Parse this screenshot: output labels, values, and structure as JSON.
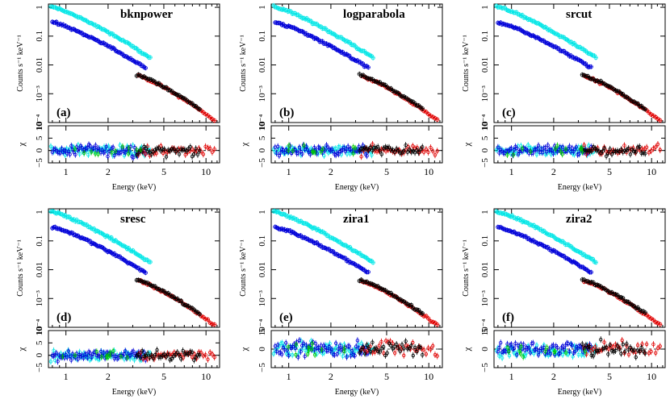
{
  "figure": {
    "xlabel": "Energy (keV)",
    "ylabel_main": "Counts s⁻¹ keV⁻¹",
    "ylabel_resid": "χ",
    "colors": {
      "cyan": "#00e6e6",
      "blue": "#0000d8",
      "red": "#e00000",
      "black": "#000000",
      "green": "#00c800"
    }
  },
  "chart_data": [
    {
      "type": "scatter",
      "title": "bknpower",
      "panel_label": "(a)",
      "xlabel": "Energy (keV)",
      "ylabel": "Counts s⁻¹ keV⁻¹",
      "xscale": "log",
      "yscale": "log",
      "xlim": [
        0.75,
        12.5
      ],
      "ylim": [
        0.0001,
        1.3
      ],
      "x_ticks": [
        1,
        2,
        5,
        10
      ],
      "y_ticks": [
        "1",
        "0.1",
        "0.01",
        "10⁻³",
        "10⁻⁴"
      ],
      "resid_ticks": [
        "10",
        "5",
        "0",
        "−5"
      ],
      "resid_ylim": [
        -5,
        10
      ],
      "series": [
        {
          "color": "cyan",
          "x_range": [
            0.78,
            4.0
          ],
          "y_start": 1.05,
          "y_end": 0.018
        },
        {
          "color": "blue",
          "x_range": [
            0.8,
            3.7
          ],
          "y_start": 0.3,
          "y_end": 0.008
        },
        {
          "color": "red",
          "x_range": [
            3.3,
            11.5
          ],
          "y_start": 0.004,
          "y_end": 0.00012
        },
        {
          "color": "black",
          "x_range": [
            3.2,
            9.0
          ],
          "y_start": 0.0045,
          "y_end": 0.0003
        }
      ]
    },
    {
      "type": "scatter",
      "title": "logparabola",
      "panel_label": "(b)",
      "xlabel": "Energy (keV)",
      "ylabel": "Counts s⁻¹ keV⁻¹",
      "xscale": "log",
      "yscale": "log",
      "xlim": [
        0.75,
        12.5
      ],
      "ylim": [
        0.0001,
        1.3
      ],
      "x_ticks": [
        1,
        2,
        5,
        10
      ],
      "y_ticks": [
        "1",
        "0.1",
        "0.01",
        "10⁻³",
        "10⁻⁴"
      ],
      "resid_ticks": [
        "10",
        "5",
        "0",
        "−5"
      ],
      "resid_ylim": [
        -5,
        10
      ],
      "series": [
        {
          "color": "cyan",
          "x_range": [
            0.78,
            4.0
          ],
          "y_start": 1.05,
          "y_end": 0.018
        },
        {
          "color": "blue",
          "x_range": [
            0.8,
            3.7
          ],
          "y_start": 0.3,
          "y_end": 0.008
        },
        {
          "color": "red",
          "x_range": [
            3.3,
            11.5
          ],
          "y_start": 0.004,
          "y_end": 0.00012
        },
        {
          "color": "black",
          "x_range": [
            3.2,
            9.0
          ],
          "y_start": 0.0045,
          "y_end": 0.0003
        }
      ]
    },
    {
      "type": "scatter",
      "title": "srcut",
      "panel_label": "(c)",
      "xlabel": "Energy (keV)",
      "ylabel": "Counts s⁻¹ keV⁻¹",
      "xscale": "log",
      "yscale": "log",
      "xlim": [
        0.75,
        12.5
      ],
      "ylim": [
        0.0001,
        1.3
      ],
      "x_ticks": [
        1,
        2,
        5,
        10
      ],
      "y_ticks": [
        "1",
        "0.1",
        "0.01",
        "10⁻³",
        "10⁻⁴"
      ],
      "resid_ticks": [
        "10",
        "5",
        "0",
        "−5"
      ],
      "resid_ylim": [
        -5,
        10
      ],
      "series": [
        {
          "color": "cyan",
          "x_range": [
            0.78,
            4.0
          ],
          "y_start": 1.05,
          "y_end": 0.018
        },
        {
          "color": "blue",
          "x_range": [
            0.8,
            3.7
          ],
          "y_start": 0.3,
          "y_end": 0.008
        },
        {
          "color": "red",
          "x_range": [
            3.3,
            11.5
          ],
          "y_start": 0.004,
          "y_end": 0.00012
        },
        {
          "color": "black",
          "x_range": [
            3.2,
            9.0
          ],
          "y_start": 0.0045,
          "y_end": 0.0003
        }
      ]
    },
    {
      "type": "scatter",
      "title": "sresc",
      "panel_label": "(d)",
      "xlabel": "Energy (keV)",
      "ylabel": "Counts s⁻¹ keV⁻¹",
      "xscale": "log",
      "yscale": "log",
      "xlim": [
        0.75,
        12.5
      ],
      "ylim": [
        0.0001,
        1.3
      ],
      "x_ticks": [
        1,
        2,
        5,
        10
      ],
      "y_ticks": [
        "1",
        "0.1",
        "0.01",
        "10⁻³",
        "10⁻⁴"
      ],
      "resid_ticks": [
        "10",
        "5",
        "0",
        "−5"
      ],
      "resid_ylim": [
        -5,
        10
      ],
      "series": [
        {
          "color": "cyan",
          "x_range": [
            0.78,
            4.0
          ],
          "y_start": 1.05,
          "y_end": 0.018
        },
        {
          "color": "blue",
          "x_range": [
            0.8,
            3.7
          ],
          "y_start": 0.3,
          "y_end": 0.008
        },
        {
          "color": "red",
          "x_range": [
            3.3,
            11.5
          ],
          "y_start": 0.004,
          "y_end": 0.00012
        },
        {
          "color": "black",
          "x_range": [
            3.2,
            9.0
          ],
          "y_start": 0.0045,
          "y_end": 0.0003
        }
      ]
    },
    {
      "type": "scatter",
      "title": "zira1",
      "panel_label": "(e)",
      "xlabel": "Energy (keV)",
      "ylabel": "Counts s⁻¹ keV⁻¹",
      "xscale": "log",
      "yscale": "log",
      "xlim": [
        0.75,
        12.5
      ],
      "ylim": [
        0.0001,
        1.3
      ],
      "x_ticks": [
        1,
        2,
        5,
        10
      ],
      "y_ticks": [
        "1",
        "0.1",
        "0.01",
        "10⁻³",
        "10⁻⁴"
      ],
      "resid_ticks": [
        "5",
        "0",
        "−5"
      ],
      "resid_ylim": [
        -5,
        5
      ],
      "series": [
        {
          "color": "cyan",
          "x_range": [
            0.78,
            4.0
          ],
          "y_start": 1.05,
          "y_end": 0.018
        },
        {
          "color": "blue",
          "x_range": [
            0.8,
            3.7
          ],
          "y_start": 0.3,
          "y_end": 0.008
        },
        {
          "color": "red",
          "x_range": [
            3.3,
            11.5
          ],
          "y_start": 0.004,
          "y_end": 0.00012
        },
        {
          "color": "black",
          "x_range": [
            3.2,
            9.0
          ],
          "y_start": 0.0045,
          "y_end": 0.0003
        }
      ]
    },
    {
      "type": "scatter",
      "title": "zira2",
      "panel_label": "(f)",
      "xlabel": "Energy (keV)",
      "ylabel": "Counts s⁻¹ keV⁻¹",
      "xscale": "log",
      "yscale": "log",
      "xlim": [
        0.75,
        12.5
      ],
      "ylim": [
        0.0001,
        1.3
      ],
      "x_ticks": [
        1,
        2,
        5,
        10
      ],
      "y_ticks": [
        "1",
        "0.1",
        "0.01",
        "10⁻³",
        "10⁻⁴"
      ],
      "resid_ticks": [
        "5",
        "0",
        "−5"
      ],
      "resid_ylim": [
        -5,
        5
      ],
      "series": [
        {
          "color": "cyan",
          "x_range": [
            0.78,
            4.0
          ],
          "y_start": 1.05,
          "y_end": 0.018
        },
        {
          "color": "blue",
          "x_range": [
            0.8,
            3.7
          ],
          "y_start": 0.3,
          "y_end": 0.008
        },
        {
          "color": "red",
          "x_range": [
            3.3,
            11.5
          ],
          "y_start": 0.004,
          "y_end": 0.00012
        },
        {
          "color": "black",
          "x_range": [
            3.2,
            9.0
          ],
          "y_start": 0.0045,
          "y_end": 0.0003
        }
      ]
    }
  ]
}
